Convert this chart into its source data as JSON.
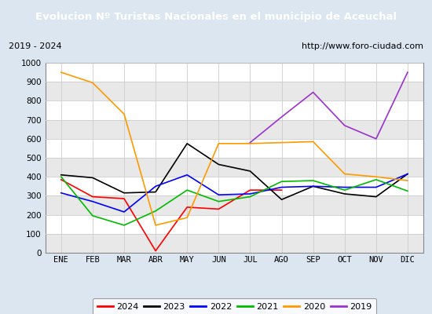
{
  "title": "Evolucion Nº Turistas Nacionales en el municipio de Aceuchal",
  "subtitle_left": "2019 - 2024",
  "subtitle_right": "http://www.foro-ciudad.com",
  "title_bg_color": "#4f81bd",
  "title_text_color": "#ffffff",
  "months": [
    "ENE",
    "FEB",
    "MAR",
    "ABR",
    "MAY",
    "JUN",
    "JUL",
    "AGO",
    "SEP",
    "OCT",
    "NOV",
    "DIC"
  ],
  "ylim": [
    0,
    1000
  ],
  "yticks": [
    0,
    100,
    200,
    300,
    400,
    500,
    600,
    700,
    800,
    900,
    1000
  ],
  "series": {
    "2024": {
      "color": "#ff0000",
      "data": [
        385,
        295,
        285,
        10,
        240,
        230,
        330,
        330,
        null,
        null,
        null,
        null
      ]
    },
    "2023": {
      "color": "#000000",
      "data": [
        410,
        395,
        315,
        320,
        575,
        465,
        430,
        280,
        350,
        310,
        295,
        415
      ]
    },
    "2022": {
      "color": "#0000ff",
      "data": [
        315,
        270,
        215,
        350,
        410,
        305,
        310,
        345,
        350,
        345,
        345,
        415
      ]
    },
    "2021": {
      "color": "#00bb00",
      "data": [
        400,
        195,
        145,
        220,
        330,
        270,
        295,
        375,
        380,
        330,
        385,
        325
      ]
    },
    "2020": {
      "color": "#ff9900",
      "data": [
        950,
        895,
        730,
        145,
        185,
        575,
        575,
        580,
        585,
        415,
        400,
        380
      ]
    },
    "2019": {
      "color": "#9933cc",
      "data": [
        null,
        null,
        null,
        null,
        null,
        null,
        580,
        715,
        845,
        670,
        600,
        950
      ]
    }
  },
  "legend_order": [
    "2024",
    "2023",
    "2022",
    "2021",
    "2020",
    "2019"
  ],
  "outer_bg_color": "#dce6f1",
  "subtitle_bg_color": "#f2f2f2",
  "plot_bg_color": "#ffffff",
  "grid_color": "#cccccc",
  "band_color": "#e8e8e8"
}
